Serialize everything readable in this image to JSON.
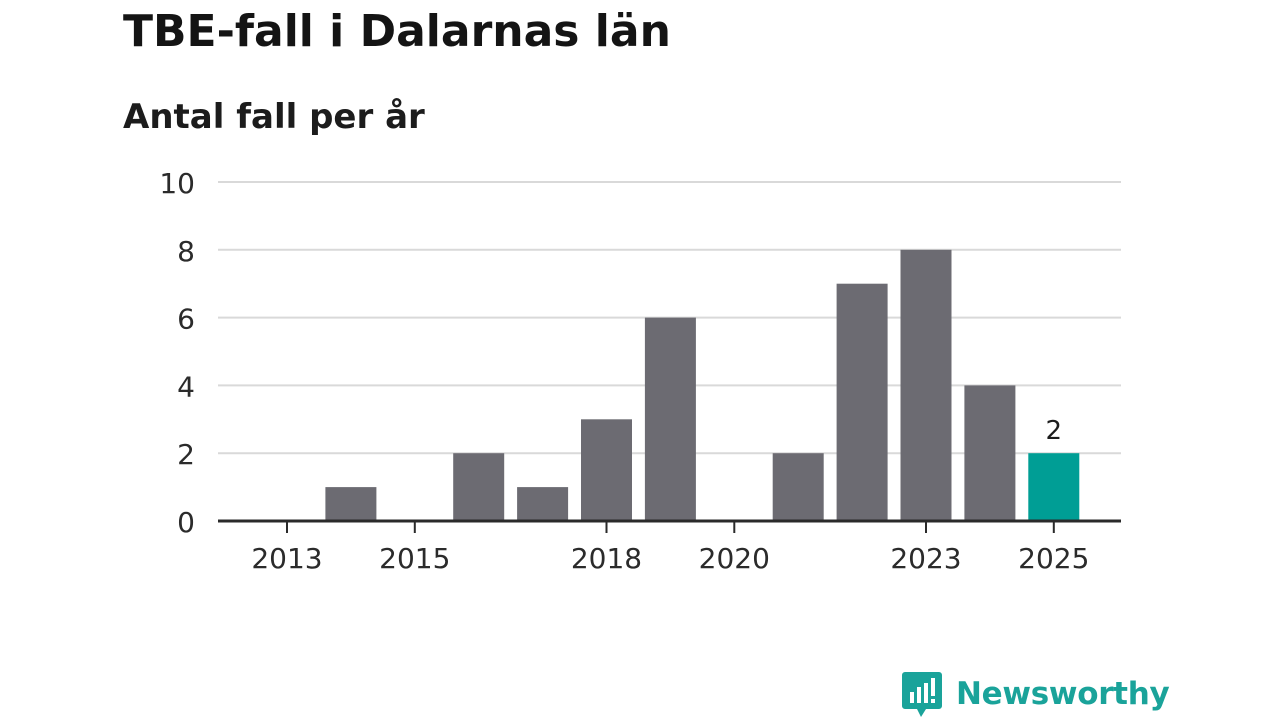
{
  "chart_data": {
    "type": "bar",
    "title": "TBE-fall i Dalarnas län",
    "subtitle": "Antal fall per år",
    "xlabel": "",
    "ylabel": "",
    "categories": [
      "2013",
      "2014",
      "2015",
      "2016",
      "2017",
      "2018",
      "2019",
      "2020",
      "2021",
      "2022",
      "2023",
      "2024",
      "2025"
    ],
    "values": [
      0,
      1,
      0,
      2,
      1,
      3,
      6,
      0,
      2,
      7,
      8,
      4,
      2
    ],
    "x_tick_labels": [
      "2013",
      "2015",
      "2018",
      "2020",
      "2023",
      "2025"
    ],
    "y_ticks": [
      0,
      2,
      4,
      6,
      8,
      10
    ],
    "ylim": [
      0,
      10
    ],
    "grid": true,
    "highlight": {
      "category": "2025",
      "label": "2"
    },
    "colors": {
      "bar": "#6c6b72",
      "highlight": "#009e95",
      "grid": "#d9d9d9",
      "axis": "#2a2a2a"
    }
  },
  "branding": {
    "logo_text": "Newsworthy",
    "logo_icon": "newsworthy-chart-bubble-icon",
    "color": "#1aa39a"
  }
}
